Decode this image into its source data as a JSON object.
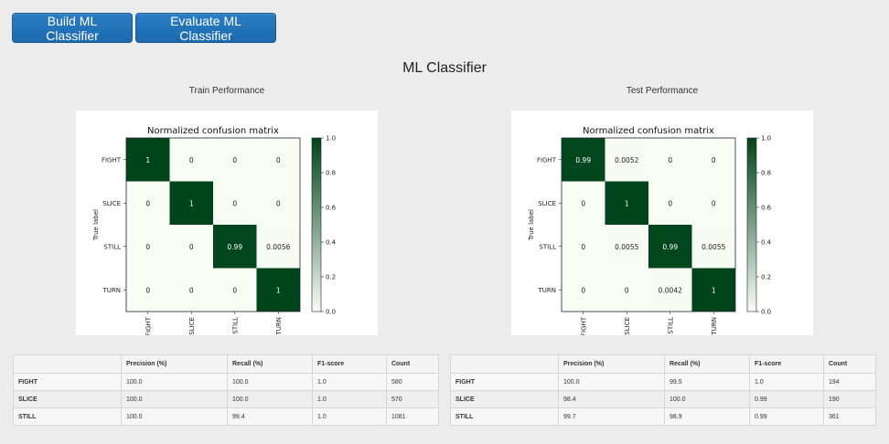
{
  "toolbar": {
    "build_label": "Build ML Classifier",
    "evaluate_label": "Evaluate ML Classifier",
    "button_color": "#1f6fb2"
  },
  "page": {
    "title": "ML Classifier"
  },
  "sections": {
    "train_title": "Train Performance",
    "test_title": "Test Performance"
  },
  "chart_data": [
    {
      "type": "heatmap",
      "title": "Normalized confusion matrix",
      "ylabel": "True label",
      "xlabel": "",
      "labels": [
        "FIGHT",
        "SLICE",
        "STILL",
        "TURN"
      ],
      "matrix": [
        [
          1,
          0,
          0,
          0
        ],
        [
          0,
          1,
          0,
          0
        ],
        [
          0,
          0,
          0.99,
          0.0056
        ],
        [
          0,
          0,
          0,
          1
        ]
      ],
      "cell_text": [
        [
          "1",
          "0",
          "0",
          "0"
        ],
        [
          "0",
          "1",
          "0",
          "0"
        ],
        [
          "0",
          "0",
          "0.99",
          "0.0056"
        ],
        [
          "0",
          "0",
          "0",
          "1"
        ]
      ],
      "colorbar_range": [
        0,
        1
      ],
      "colorbar_ticks": [
        "0.0",
        "0.2",
        "0.4",
        "0.6",
        "0.8",
        "1.0"
      ],
      "colormap": "Greens",
      "grid": false
    },
    {
      "type": "heatmap",
      "title": "Normalized confusion matrix",
      "ylabel": "True label",
      "xlabel": "",
      "labels": [
        "FIGHT",
        "SLICE",
        "STILL",
        "TURN"
      ],
      "matrix": [
        [
          0.99,
          0.0052,
          0,
          0
        ],
        [
          0,
          1,
          0,
          0
        ],
        [
          0,
          0.0055,
          0.99,
          0.0055
        ],
        [
          0,
          0,
          0.0042,
          1
        ]
      ],
      "cell_text": [
        [
          "0.99",
          "0.0052",
          "0",
          "0"
        ],
        [
          "0",
          "1",
          "0",
          "0"
        ],
        [
          "0",
          "0.0055",
          "0.99",
          "0.0055"
        ],
        [
          "0",
          "0",
          "0.0042",
          "1"
        ]
      ],
      "colorbar_range": [
        0,
        1
      ],
      "colorbar_ticks": [
        "0.0",
        "0.2",
        "0.4",
        "0.6",
        "0.8",
        "1.0"
      ],
      "colormap": "Greens",
      "grid": false
    }
  ],
  "tables": {
    "headers": [
      "",
      "Precision (%)",
      "Recall (%)",
      "F1-score",
      "Count"
    ],
    "train_rows": [
      [
        "FIGHT",
        "100.0",
        "100.0",
        "1.0",
        "580"
      ],
      [
        "SLICE",
        "100.0",
        "100.0",
        "1.0",
        "570"
      ],
      [
        "STILL",
        "100.0",
        "99.4",
        "1.0",
        "1081"
      ]
    ],
    "test_rows": [
      [
        "FIGHT",
        "100.0",
        "99.5",
        "1.0",
        "194"
      ],
      [
        "SLICE",
        "98.4",
        "100.0",
        "0.99",
        "190"
      ],
      [
        "STILL",
        "99.7",
        "98.9",
        "0.99",
        "361"
      ]
    ]
  }
}
